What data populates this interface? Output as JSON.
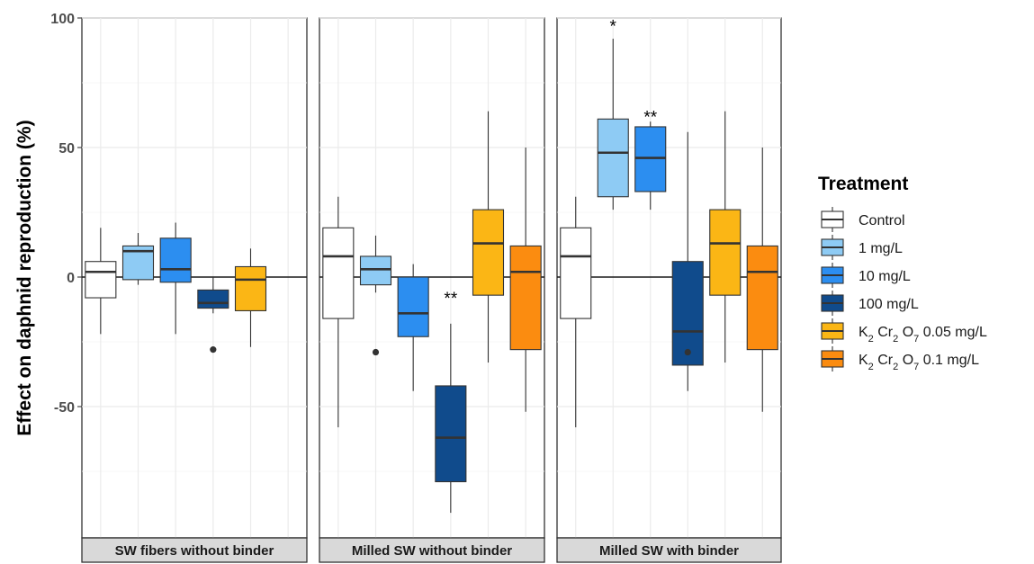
{
  "chart_data": {
    "type": "boxplot",
    "ylabel": "Effect on daphnid reproduction (%)",
    "ylim": [
      -100,
      100
    ],
    "y_ticks": [
      100,
      50,
      0,
      -50
    ],
    "grid": true,
    "legend": {
      "title": "Treatment",
      "placement": "right",
      "items": [
        {
          "label": "Control",
          "color": "#ffffff"
        },
        {
          "label": "1 mg/L",
          "color": "#8ecbf4"
        },
        {
          "label": "10 mg/L",
          "color": "#2c8ef0"
        },
        {
          "label": "100 mg/L",
          "color": "#104b8c"
        },
        {
          "label_parts": [
            "K",
            "2",
            " Cr",
            "2",
            " O",
            "7",
            "  0.05 mg/L"
          ],
          "color": "#fbb615"
        },
        {
          "label_parts": [
            "K",
            "2",
            " Cr",
            "2",
            " O",
            "7",
            "  0.1 mg/L"
          ],
          "color": "#fb8c10"
        }
      ]
    },
    "panels": [
      {
        "title": "SW fibers without binder",
        "boxes": [
          {
            "treatment": 0,
            "min": -22,
            "q1": -8,
            "median": 2,
            "q3": 6,
            "max": 19,
            "outliers": []
          },
          {
            "treatment": 1,
            "min": -3,
            "q1": -1,
            "median": 10,
            "q3": 12,
            "max": 17,
            "outliers": []
          },
          {
            "treatment": 2,
            "min": -22,
            "q1": -2,
            "median": 3,
            "q3": 15,
            "max": 21,
            "outliers": []
          },
          {
            "treatment": 3,
            "min": -14,
            "q1": -12,
            "median": -10,
            "q3": -5,
            "max": 0,
            "outliers": [
              -28
            ]
          },
          {
            "treatment": 4,
            "min": -27,
            "q1": -13,
            "median": -1,
            "q3": 4,
            "max": 11,
            "outliers": []
          }
        ],
        "annotations": []
      },
      {
        "title": "Milled SW without binder",
        "boxes": [
          {
            "treatment": 0,
            "min": -58,
            "q1": -16,
            "median": 8,
            "q3": 19,
            "max": 31,
            "outliers": []
          },
          {
            "treatment": 1,
            "min": -6,
            "q1": -3,
            "median": 3,
            "q3": 8,
            "max": 16,
            "outliers": [
              -29
            ]
          },
          {
            "treatment": 2,
            "min": -44,
            "q1": -23,
            "median": -14,
            "q3": 0,
            "max": 5,
            "outliers": []
          },
          {
            "treatment": 3,
            "min": -91,
            "q1": -79,
            "median": -62,
            "q3": -42,
            "max": -18,
            "outliers": []
          },
          {
            "treatment": 4,
            "min": -33,
            "q1": -7,
            "median": 13,
            "q3": 26,
            "max": 64,
            "outliers": []
          },
          {
            "treatment": 5,
            "min": -52,
            "q1": -28,
            "median": 2,
            "q3": 12,
            "max": 50,
            "outliers": []
          }
        ],
        "annotations": [
          {
            "treatment": 3,
            "text": "**",
            "y": -8
          }
        ]
      },
      {
        "title": "Milled SW with binder",
        "boxes": [
          {
            "treatment": 0,
            "min": -58,
            "q1": -16,
            "median": 8,
            "q3": 19,
            "max": 31,
            "outliers": []
          },
          {
            "treatment": 1,
            "min": 26,
            "q1": 31,
            "median": 48,
            "q3": 61,
            "max": 92,
            "outliers": []
          },
          {
            "treatment": 2,
            "min": 26,
            "q1": 33,
            "median": 46,
            "q3": 58,
            "max": 60,
            "outliers": []
          },
          {
            "treatment": 3,
            "min": -44,
            "q1": -34,
            "median": -21,
            "q3": 6,
            "max": 56,
            "outliers": [
              -29
            ]
          },
          {
            "treatment": 4,
            "min": -33,
            "q1": -7,
            "median": 13,
            "q3": 26,
            "max": 64,
            "outliers": []
          },
          {
            "treatment": 5,
            "min": -52,
            "q1": -28,
            "median": 2,
            "q3": 12,
            "max": 50,
            "outliers": []
          }
        ],
        "annotations": [
          {
            "treatment": 1,
            "text": "*",
            "y": 97
          },
          {
            "treatment": 2,
            "text": "**",
            "y": 62
          }
        ]
      }
    ]
  }
}
